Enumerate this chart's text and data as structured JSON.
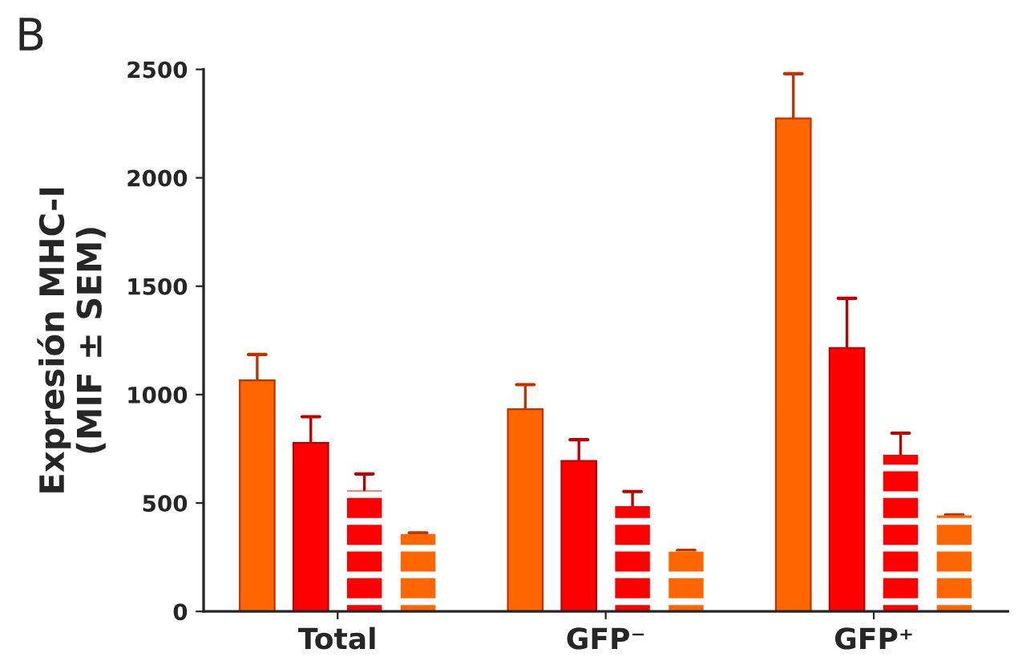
{
  "chart_data": {
    "type": "bar",
    "ylabel": "Expresión MHC-I\n(MIF ± SEM)",
    "annotations": [
      "B"
    ],
    "categories": [
      "Total",
      "GFP⁻",
      "GFP⁺"
    ],
    "series": [
      {
        "color": "#ff6600",
        "values": [
          1066,
          933,
          2274
        ],
        "errors": [
          [
            1066,
            1185
          ],
          [
            933,
            1046
          ],
          [
            2274,
            2480
          ]
        ]
      },
      {
        "color": "#ff0000",
        "values": [
          777,
          694,
          1215
        ],
        "errors": [
          [
            777,
            898
          ],
          [
            694,
            792
          ],
          [
            1215,
            1444
          ]
        ]
      },
      {
        "color": "#ff0000",
        "values": [
          558,
          485,
          722
        ],
        "errors": [
          [
            558,
            634
          ],
          [
            485,
            553
          ],
          [
            722,
            822
          ]
        ]
      },
      {
        "color": "#ff6600",
        "values": [
          357,
          277,
          443
        ],
        "errors": [
          [
            357,
            362
          ],
          [
            277,
            282
          ],
          [
            443,
            445
          ]
        ]
      }
    ],
    "ylim": [
      0,
      2500
    ],
    "yticks": [
      0,
      500,
      1000,
      1500,
      2000,
      2500
    ],
    "grid": false,
    "legend": false
  }
}
